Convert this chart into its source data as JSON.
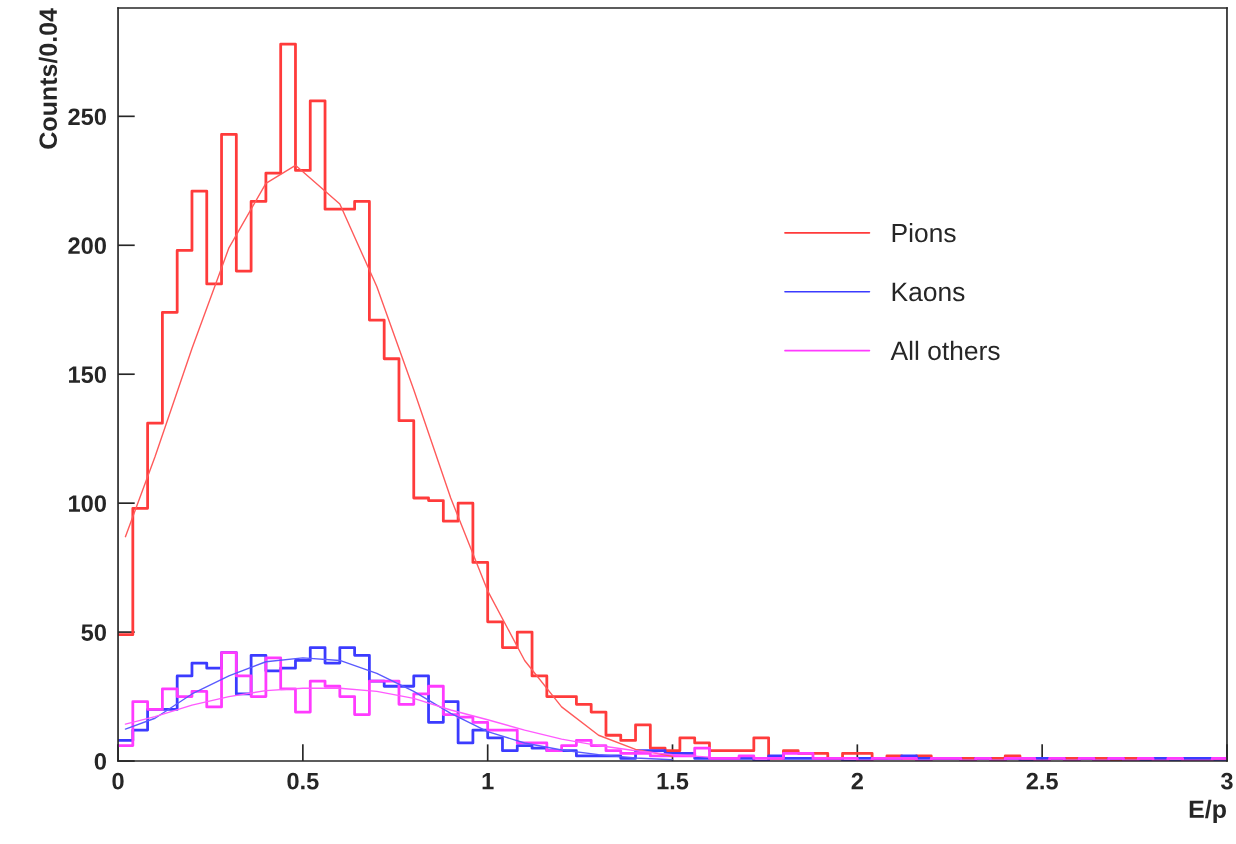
{
  "chart_data": {
    "type": "histogram",
    "xlabel": "E/p",
    "ylabel": "Counts/0.04",
    "xlim": [
      0,
      3
    ],
    "ylim": [
      0,
      292
    ],
    "xticks": [
      0,
      0.5,
      1,
      1.5,
      2,
      2.5,
      3
    ],
    "yticks": [
      0,
      50,
      100,
      150,
      200,
      250
    ],
    "grid": false,
    "legend": "right",
    "bins": [
      0,
      0.04,
      0.08,
      0.12,
      0.16,
      0.2,
      0.24,
      0.28,
      0.32,
      0.36,
      0.4,
      0.44,
      0.48,
      0.52,
      0.56,
      0.6,
      0.64,
      0.68,
      0.72,
      0.76,
      0.8,
      0.84,
      0.88,
      0.92,
      0.96,
      1.0,
      1.04,
      1.08,
      1.12,
      1.16,
      1.2,
      1.24,
      1.28,
      1.32,
      1.36,
      1.4,
      1.44,
      1.48,
      1.52,
      1.56,
      1.6,
      1.64,
      1.68,
      1.72,
      1.76,
      1.8,
      1.84,
      1.88,
      1.92,
      1.96,
      2.0,
      2.04,
      2.08,
      2.12,
      2.16,
      2.2,
      2.24,
      2.28,
      2.32,
      2.36,
      2.4,
      2.44,
      2.48,
      2.52,
      2.56,
      2.6,
      2.64,
      2.68,
      2.72,
      2.76,
      2.8,
      2.84,
      2.88,
      2.92,
      2.96,
      3.0
    ],
    "series": [
      {
        "name": "Pions",
        "color": "#ff3b3b",
        "values": [
          49,
          98,
          131,
          174,
          198,
          221,
          185,
          243,
          190,
          217,
          228,
          278,
          229,
          256,
          214,
          214,
          217,
          171,
          156,
          132,
          102,
          101,
          93,
          100,
          77,
          54,
          44,
          50,
          33,
          25,
          25,
          22,
          19,
          10,
          8,
          14,
          5,
          4,
          9,
          7,
          4,
          4,
          4,
          9,
          1,
          4,
          3,
          3,
          1,
          3,
          3,
          1,
          2,
          1,
          2,
          1,
          1,
          1,
          1,
          1,
          2,
          1,
          1,
          1,
          1,
          1,
          1,
          0,
          1,
          1,
          1,
          0,
          1,
          1,
          1
        ]
      },
      {
        "name": "Kaons",
        "color": "#3b3bff",
        "values": [
          8,
          12,
          20,
          20,
          33,
          38,
          36,
          42,
          26,
          41,
          35,
          36,
          39,
          44,
          38,
          44,
          41,
          31,
          29,
          29,
          33,
          15,
          23,
          7,
          12,
          9,
          4,
          6,
          5,
          4,
          4,
          2,
          2,
          2,
          1,
          4,
          4,
          3,
          3,
          1,
          1,
          1,
          1,
          0,
          2,
          1,
          1,
          1,
          1,
          0,
          1,
          1,
          1,
          2,
          1,
          1,
          1,
          0,
          1,
          0,
          1,
          0,
          1,
          1,
          0,
          1,
          0,
          1,
          0,
          0,
          1,
          0,
          1,
          1,
          0
        ]
      },
      {
        "name": "All others",
        "color": "#ff3bff",
        "values": [
          6,
          23,
          20,
          28,
          25,
          27,
          21,
          42,
          33,
          25,
          40,
          28,
          19,
          31,
          29,
          25,
          18,
          31,
          31,
          22,
          26,
          29,
          18,
          17,
          15,
          12,
          12,
          7,
          7,
          4,
          6,
          8,
          6,
          4,
          3,
          3,
          2,
          2,
          2,
          5,
          1,
          1,
          2,
          1,
          1,
          3,
          3,
          1,
          1,
          1,
          0,
          1,
          1,
          1,
          0,
          1,
          1,
          0,
          1,
          0,
          1,
          1,
          0,
          1,
          0,
          1,
          0,
          1,
          0,
          1,
          0,
          1,
          0,
          0,
          1
        ]
      },
      {
        "type": "line",
        "color": "#ff5a5a",
        "x": [
          0.02,
          0.1,
          0.2,
          0.3,
          0.4,
          0.48,
          0.6,
          0.7,
          0.8,
          0.9,
          1.0,
          1.1,
          1.2,
          1.3,
          1.4,
          1.5
        ],
        "values": [
          87,
          118,
          160,
          199,
          224,
          231,
          216,
          184,
          144,
          102,
          66,
          39,
          21,
          10,
          4.5,
          1.8
        ]
      },
      {
        "type": "line",
        "color": "#5a5aff",
        "x": [
          0.02,
          0.1,
          0.2,
          0.3,
          0.4,
          0.5,
          0.6,
          0.7,
          0.8,
          0.9,
          1.0,
          1.1,
          1.2,
          1.3,
          1.4,
          1.5
        ],
        "values": [
          12.4,
          16.6,
          26,
          33,
          38.5,
          40,
          39,
          34,
          27,
          18.5,
          11.4,
          7,
          4.3,
          2.5,
          1.2,
          0.5
        ]
      },
      {
        "type": "line",
        "color": "#ff5aff",
        "x": [
          0.02,
          0.1,
          0.2,
          0.3,
          0.4,
          0.5,
          0.6,
          0.7,
          0.8,
          0.9,
          1.0,
          1.1,
          1.2,
          1.3,
          1.4,
          1.5,
          1.6
        ],
        "values": [
          14.3,
          17.2,
          21.7,
          25,
          27.3,
          28.2,
          28.2,
          27,
          24.3,
          19.8,
          16,
          12,
          8.5,
          6,
          4,
          2.5,
          1.5
        ]
      }
    ]
  }
}
